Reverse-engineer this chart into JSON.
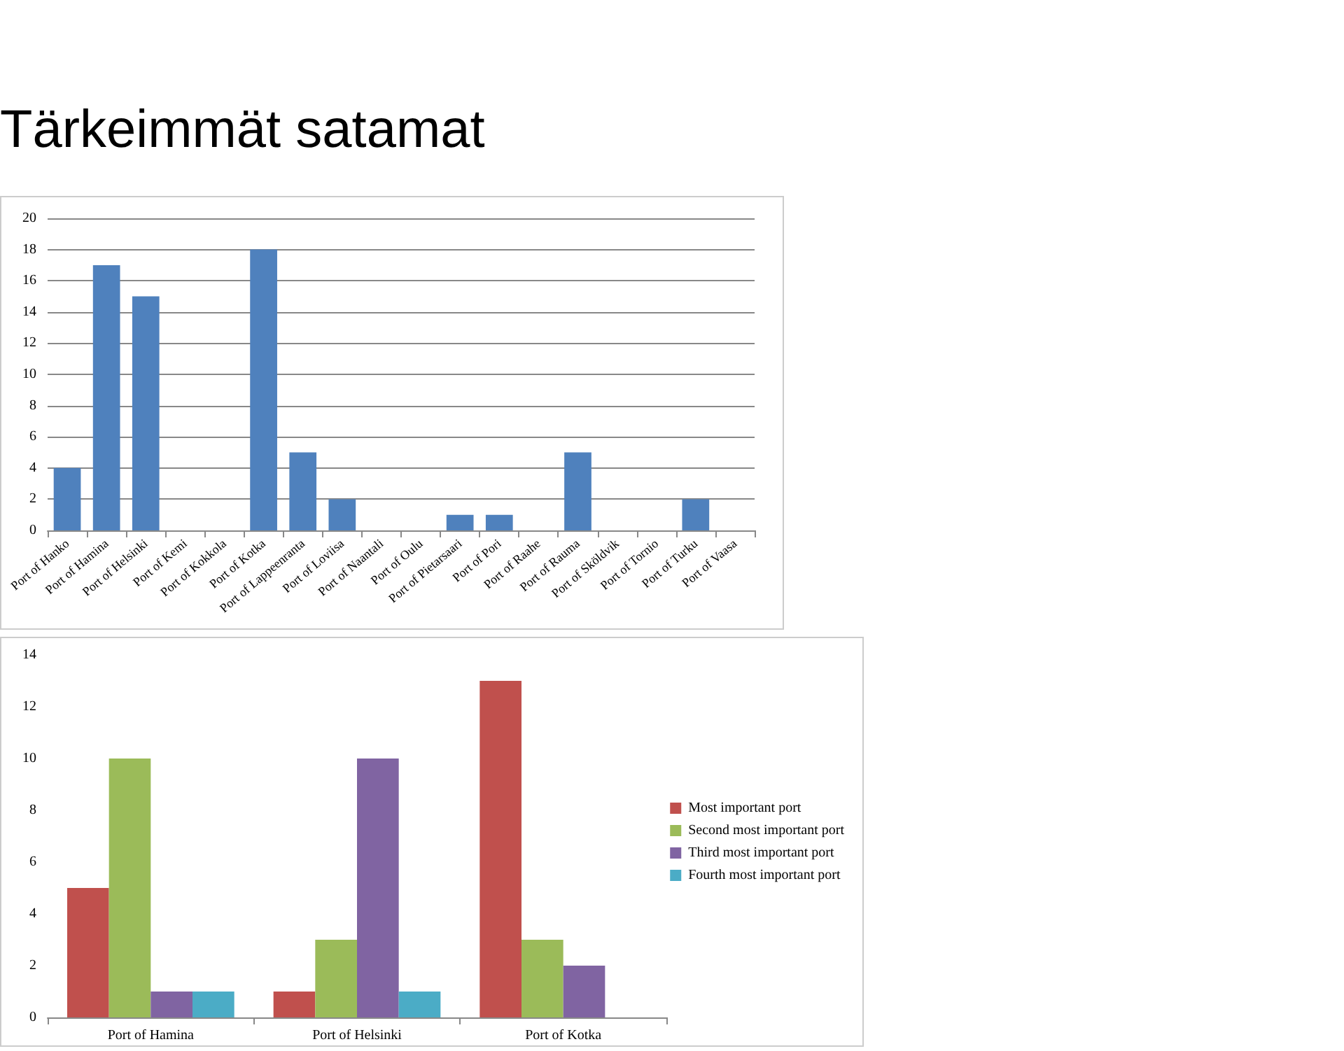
{
  "chart_data": [
    {
      "type": "bar",
      "title": "Tärkeimmät satamat",
      "categories": [
        "Port of Hanko",
        "Port of Hamina",
        "Port of Helsinki",
        "Port of Kemi",
        "Port of Kokkola",
        "Port of Kotka",
        "Port of Lappeenranta",
        "Port of Loviisa",
        "Port of Naantali",
        "Port of Oulu",
        "Port of Pietarsaari",
        "Port of Pori",
        "Port of Raahe",
        "Port of Rauma",
        "Port of Sköldvik",
        "Port of Tornio",
        "Port of Turku",
        "Port of Vaasa"
      ],
      "values": [
        4,
        17,
        15,
        0,
        0,
        18,
        5,
        2,
        0,
        0,
        1,
        1,
        0,
        5,
        0,
        0,
        2,
        0
      ],
      "color": "#4f81bd",
      "ylim": [
        0,
        20
      ],
      "yticks": [
        0,
        2,
        4,
        6,
        8,
        10,
        12,
        14,
        16,
        18,
        20
      ],
      "grid": "y"
    },
    {
      "type": "bar",
      "categories": [
        "Port of Hamina",
        "Port of Helsinki",
        "Port of Kotka"
      ],
      "series": [
        {
          "name": "Most important port",
          "color": "#c0504d",
          "values": [
            5,
            1,
            13
          ]
        },
        {
          "name": "Second most important port",
          "color": "#9bbb59",
          "values": [
            10,
            3,
            3
          ]
        },
        {
          "name": "Third most important port",
          "color": "#8064a2",
          "values": [
            1,
            10,
            2
          ]
        },
        {
          "name": "Fourth most important port",
          "color": "#4bacc6",
          "values": [
            1,
            1,
            0
          ]
        }
      ],
      "ylim": [
        0,
        14
      ],
      "yticks": [
        0,
        2,
        4,
        6,
        8,
        10,
        12,
        14
      ],
      "grid": false,
      "legend": "right"
    }
  ]
}
